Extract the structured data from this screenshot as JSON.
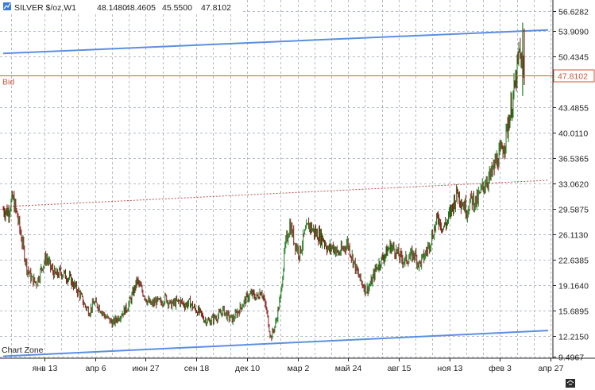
{
  "header": {
    "symbol": "SILVER $/oz,W1",
    "open": "48.1480",
    "high": "48.4605",
    "low": "45.5500",
    "close": "47.8102",
    "icon": "chart-type-icon"
  },
  "bid_label": "Bid",
  "bid_price": "47.8102",
  "chart_zone_label": "Chart Zone",
  "corner_icon": "autoscroll-icon",
  "colors": {
    "background": "#ffffff",
    "grid": "#b4bcc8",
    "candle": "#1c7a1c",
    "candle_down": "#8b1a1a",
    "channel": "#5b8fe0",
    "bid": "#c85a3c",
    "mid_line": "#c0504d",
    "axis_text": "#222222"
  },
  "chart_data": {
    "type": "candlestick",
    "symbol": "SILVER $/oz",
    "timeframe": "W1",
    "ylim": [
      9.4967,
      56.6282
    ],
    "y_ticks": [
      "56.6282",
      "53.9090",
      "50.4345",
      "47.8102",
      "43.4855",
      "40.0110",
      "36.5365",
      "33.0620",
      "29.5875",
      "26.1130",
      "22.6385",
      "19.1640",
      "15.6895",
      "12.2150",
      "9.4967"
    ],
    "x_ticks": [
      "янв 13",
      "апр 6",
      "июн 27",
      "сен 18",
      "дек 10",
      "мар 2",
      "май 24",
      "авг 15",
      "ноя 13",
      "фев 3",
      "апр 27"
    ],
    "grid": true,
    "price_path": [
      [
        0,
        29.5
      ],
      [
        1,
        29.2
      ],
      [
        2,
        31.0
      ],
      [
        3,
        28.5
      ],
      [
        4,
        25.0
      ],
      [
        5,
        21.5
      ],
      [
        6,
        20.0
      ],
      [
        7,
        19.5
      ],
      [
        8,
        21.5
      ],
      [
        9,
        23.0
      ],
      [
        10,
        21.5
      ],
      [
        11,
        20.5
      ],
      [
        12,
        21.0
      ],
      [
        13,
        20.5
      ],
      [
        14,
        20.0
      ],
      [
        15,
        19.0
      ],
      [
        16,
        18.0
      ],
      [
        17,
        16.5
      ],
      [
        18,
        15.6
      ],
      [
        19,
        16.8
      ],
      [
        20,
        16.3
      ],
      [
        21,
        15.2
      ],
      [
        22,
        14.5
      ],
      [
        23,
        14.0
      ],
      [
        24,
        14.8
      ],
      [
        25,
        15.5
      ],
      [
        26,
        16.2
      ],
      [
        27,
        17.8
      ],
      [
        28,
        19.8
      ],
      [
        29,
        18.5
      ],
      [
        30,
        17.2
      ],
      [
        31,
        16.5
      ],
      [
        32,
        17.0
      ],
      [
        33,
        16.8
      ],
      [
        34,
        17.5
      ],
      [
        35,
        16.5
      ],
      [
        36,
        16.8
      ],
      [
        37,
        17.0
      ],
      [
        38,
        16.5
      ],
      [
        39,
        16.8
      ],
      [
        40,
        16.0
      ],
      [
        41,
        15.5
      ],
      [
        42,
        14.6
      ],
      [
        43,
        14.2
      ],
      [
        44,
        14.7
      ],
      [
        45,
        15.0
      ],
      [
        46,
        15.8
      ],
      [
        47,
        14.9
      ],
      [
        48,
        14.5
      ],
      [
        49,
        15.5
      ],
      [
        50,
        16.5
      ],
      [
        51,
        17.5
      ],
      [
        52,
        18.0
      ],
      [
        53,
        17.5
      ],
      [
        54,
        18.5
      ],
      [
        55,
        16.0
      ],
      [
        56,
        12.0
      ],
      [
        57,
        14.0
      ],
      [
        58,
        17.5
      ],
      [
        59,
        24.5
      ],
      [
        60,
        27.5
      ],
      [
        61,
        25.0
      ],
      [
        62,
        23.5
      ],
      [
        63,
        26.0
      ],
      [
        64,
        27.5
      ],
      [
        65,
        26.5
      ],
      [
        66,
        26.0
      ],
      [
        67,
        25.5
      ],
      [
        68,
        24.0
      ],
      [
        69,
        24.5
      ],
      [
        70,
        23.5
      ],
      [
        71,
        24.0
      ],
      [
        72,
        25.0
      ],
      [
        73,
        23.0
      ],
      [
        74,
        21.0
      ],
      [
        75,
        19.5
      ],
      [
        76,
        18.5
      ],
      [
        77,
        19.5
      ],
      [
        78,
        21.5
      ],
      [
        79,
        22.5
      ],
      [
        80,
        23.5
      ],
      [
        81,
        24.5
      ],
      [
        82,
        24.0
      ],
      [
        83,
        23.0
      ],
      [
        84,
        22.5
      ],
      [
        85,
        23.0
      ],
      [
        86,
        23.5
      ],
      [
        87,
        22.0
      ],
      [
        88,
        23.0
      ],
      [
        89,
        24.5
      ],
      [
        90,
        26.5
      ],
      [
        91,
        28.5
      ],
      [
        92,
        27.0
      ],
      [
        93,
        28.0
      ],
      [
        94,
        30.0
      ],
      [
        95,
        32.0
      ],
      [
        96,
        30.5
      ],
      [
        97,
        29.5
      ],
      [
        98,
        31.0
      ],
      [
        99,
        30.5
      ],
      [
        100,
        32.0
      ],
      [
        101,
        33.5
      ],
      [
        102,
        34.0
      ],
      [
        103,
        36.0
      ],
      [
        104,
        37.0
      ],
      [
        105,
        39.0
      ],
      [
        106,
        42.5
      ],
      [
        107,
        46.0
      ],
      [
        108,
        51.0
      ],
      [
        109,
        48.0
      ]
    ],
    "lines": [
      {
        "name": "channel-upper",
        "style": "solid",
        "from": [
          0,
          50.8
        ],
        "to": [
          114,
          54.0
        ]
      },
      {
        "name": "channel-lower",
        "style": "solid",
        "from": [
          0,
          9.5
        ],
        "to": [
          114,
          13.0
        ]
      },
      {
        "name": "channel-mid",
        "style": "dashed",
        "from": [
          0,
          29.9
        ],
        "to": [
          114,
          33.5
        ]
      },
      {
        "name": "bid",
        "style": "solid",
        "price": 47.8102
      }
    ]
  }
}
